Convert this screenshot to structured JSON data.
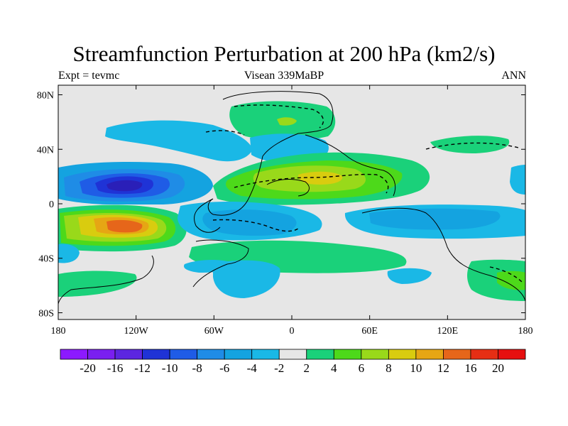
{
  "title": "Streamfunction Perturbation at 200 hPa (km2/s)",
  "subtitle_left": "Expt = tevmc",
  "subtitle_center": "Visean 339MaBP",
  "subtitle_right": "ANN",
  "lat_ticks": [
    {
      "lat": 80,
      "label": "80N"
    },
    {
      "lat": 40,
      "label": "40N"
    },
    {
      "lat": 0,
      "label": "0"
    },
    {
      "lat": -40,
      "label": "40S"
    },
    {
      "lat": -80,
      "label": "80S"
    }
  ],
  "lon_ticks": [
    {
      "lon": -180,
      "label": "180"
    },
    {
      "lon": -120,
      "label": "120W"
    },
    {
      "lon": -60,
      "label": "60W"
    },
    {
      "lon": 0,
      "label": "0"
    },
    {
      "lon": 60,
      "label": "60E"
    },
    {
      "lon": 120,
      "label": "120E"
    },
    {
      "lon": 180,
      "label": "180"
    }
  ],
  "colorbar": {
    "colors": [
      "#8c1aff",
      "#7a1ff0",
      "#5c26e0",
      "#1f33d6",
      "#1f5ce6",
      "#1f8ce6",
      "#14a3e0",
      "#1ab8e6",
      "#e6e6e6",
      "#1ad17a",
      "#4dd91a",
      "#99d91a",
      "#d9cc0f",
      "#e6a614",
      "#e6661a",
      "#e62e14",
      "#e60f0f"
    ],
    "labels": [
      "-20",
      "-16",
      "-12",
      "-10",
      "-8",
      "-6",
      "-4",
      "-2",
      "2",
      "4",
      "6",
      "8",
      "10",
      "12",
      "16",
      "20"
    ]
  },
  "map_background": "#e6e6e6"
}
